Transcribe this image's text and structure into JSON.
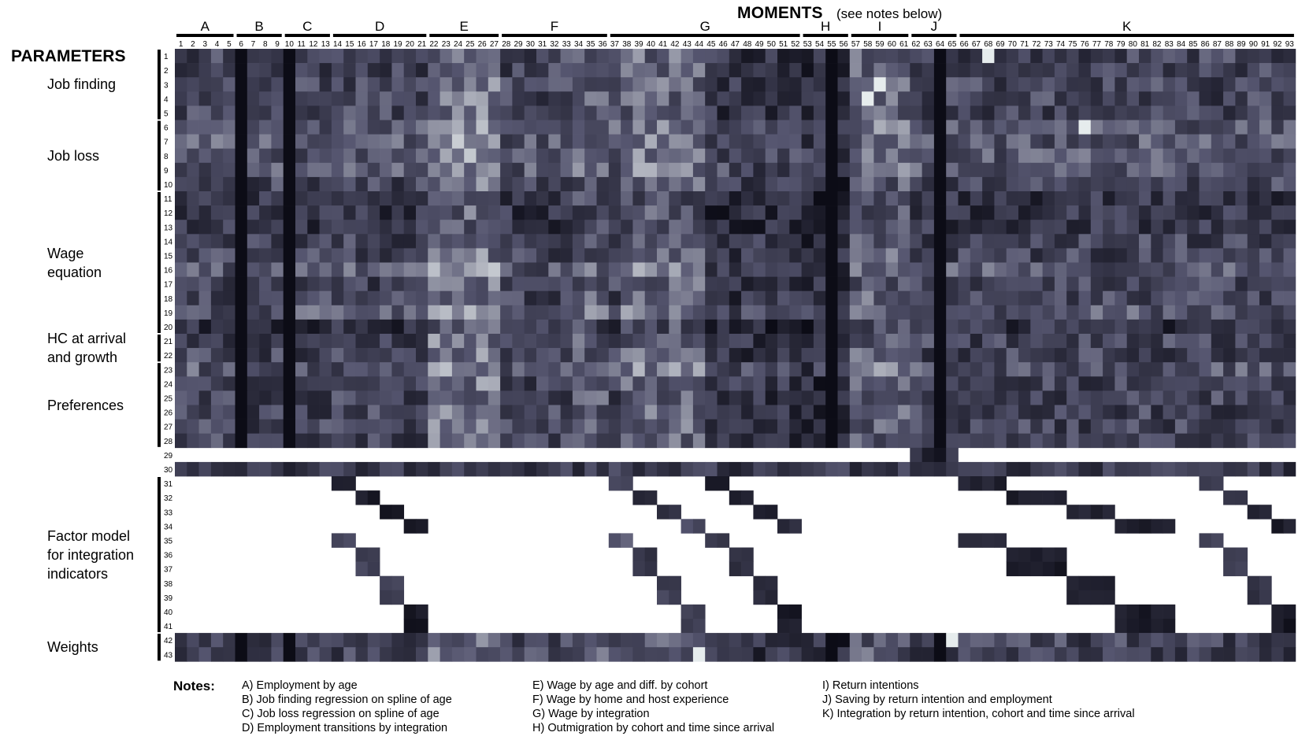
{
  "header": {
    "moments_title": "MOMENTS",
    "moments_note": "(see notes below)",
    "parameters_title": "PARAMETERS"
  },
  "chart_data": {
    "type": "heatmap",
    "title": "MOMENTS (see notes below)",
    "x_axis": {
      "label": "MOMENTS",
      "tick_labels": [
        "1",
        "2",
        "3",
        "4",
        "5",
        "6",
        "7",
        "8",
        "9",
        "10",
        "11",
        "12",
        "13",
        "14",
        "15",
        "16",
        "17",
        "18",
        "19",
        "20",
        "21",
        "22",
        "23",
        "24",
        "25",
        "26",
        "27",
        "28",
        "29",
        "30",
        "31",
        "32",
        "33",
        "34",
        "35",
        "36",
        "37",
        "38",
        "39",
        "40",
        "41",
        "42",
        "43",
        "44",
        "45",
        "46",
        "47",
        "48",
        "49",
        "50",
        "51",
        "52",
        "53",
        "54",
        "55",
        "56",
        "57",
        "58",
        "59",
        "60",
        "61",
        "62",
        "63",
        "64",
        "65",
        "66",
        "67",
        "68",
        "69",
        "70",
        "71",
        "72",
        "73",
        "74",
        "75",
        "76",
        "77",
        "78",
        "79",
        "80",
        "81",
        "82",
        "83",
        "84",
        "85",
        "86",
        "87",
        "88",
        "89",
        "90",
        "91",
        "92",
        "93"
      ],
      "groups": [
        {
          "label": "A",
          "from": 1,
          "to": 5
        },
        {
          "label": "B",
          "from": 6,
          "to": 9
        },
        {
          "label": "C",
          "from": 10,
          "to": 13
        },
        {
          "label": "D",
          "from": 14,
          "to": 21
        },
        {
          "label": "E",
          "from": 22,
          "to": 27
        },
        {
          "label": "F",
          "from": 28,
          "to": 36
        },
        {
          "label": "G",
          "from": 37,
          "to": 52
        },
        {
          "label": "H",
          "from": 53,
          "to": 56
        },
        {
          "label": "I",
          "from": 57,
          "to": 61
        },
        {
          "label": "J",
          "from": 62,
          "to": 65
        },
        {
          "label": "K",
          "from": 66,
          "to": 93
        }
      ]
    },
    "y_axis": {
      "label": "PARAMETERS",
      "tick_labels": [
        "1",
        "2",
        "3",
        "4",
        "5",
        "6",
        "7",
        "8",
        "9",
        "10",
        "11",
        "12",
        "13",
        "14",
        "15",
        "16",
        "17",
        "18",
        "19",
        "20",
        "21",
        "22",
        "23",
        "24",
        "25",
        "26",
        "27",
        "28",
        "29",
        "30",
        "31",
        "32",
        "33",
        "34",
        "35",
        "36",
        "37",
        "38",
        "39",
        "40",
        "41",
        "42",
        "43"
      ],
      "groups": [
        {
          "label": "Job finding",
          "from": 1,
          "to": 5
        },
        {
          "label": "Job loss",
          "from": 6,
          "to": 10
        },
        {
          "label": "Wage equation",
          "from": 11,
          "to": 20
        },
        {
          "label": "HC at arrival and growth",
          "from": 21,
          "to": 22
        },
        {
          "label": "Preferences",
          "from": 23,
          "to": 28
        },
        {
          "label": "Factor model for integration indicators",
          "from": 31,
          "to": 41
        },
        {
          "label": "Weights",
          "from": 42,
          "to": 43
        }
      ]
    },
    "colormap": {
      "low": "#0b0b14",
      "mid": "#55556e",
      "high": "#ffffff"
    },
    "empty_cell_color": "#ffffff",
    "note": "Cell shading estimated; rows 31-41 are sparse (band patterns), row 29 is empty except moments 62-64."
  },
  "notes": {
    "title": "Notes:",
    "col1": [
      "A) Employment by age",
      "B) Job finding regression on spline of age",
      "C) Job loss regression on spline of age",
      "D) Employment transitions by integration"
    ],
    "col2": [
      "E) Wage by age and diff. by cohort",
      "F) Wage by home and host experience",
      "G) Wage by integration",
      "H) Outmigration by cohort and time since arrival"
    ],
    "col3": [
      "I) Return intentions",
      "J) Saving by return intention and employment",
      "K) Integration by return intention, cohort and time since arrival"
    ]
  }
}
